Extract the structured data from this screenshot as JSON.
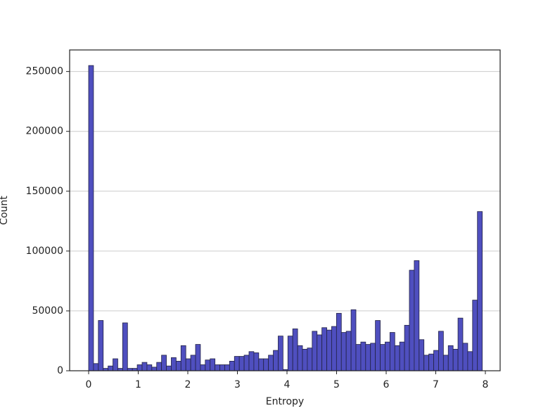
{
  "chart_data": {
    "type": "histogram",
    "xlabel": "Entropy",
    "ylabel": "Count",
    "bins": [
      0,
      0.098,
      0.196,
      0.294,
      0.392,
      0.49,
      0.588,
      0.686,
      0.784,
      0.882,
      0.98,
      1.078,
      1.176,
      1.274,
      1.372,
      1.47,
      1.568,
      1.666,
      1.764,
      1.862,
      1.96,
      2.058,
      2.156,
      2.254,
      2.352,
      2.45,
      2.548,
      2.646,
      2.744,
      2.842,
      2.94,
      3.038,
      3.136,
      3.234,
      3.332,
      3.43,
      3.528,
      3.626,
      3.724,
      3.822,
      3.92,
      4.018,
      4.116,
      4.214,
      4.312,
      4.41,
      4.508,
      4.606,
      4.704,
      4.802,
      4.9,
      4.998,
      5.096,
      5.194,
      5.292,
      5.39,
      5.488,
      5.586,
      5.684,
      5.782,
      5.88,
      5.978,
      6.076,
      6.174,
      6.272,
      6.37,
      6.468,
      6.566,
      6.664,
      6.762,
      6.86,
      6.958,
      7.056,
      7.154,
      7.252,
      7.35,
      7.448,
      7.546,
      7.644,
      7.742,
      7.84,
      7.938
    ],
    "values": [
      255000,
      6000,
      42000,
      2000,
      4000,
      10000,
      2000,
      40000,
      2000,
      2000,
      5000,
      7000,
      5000,
      3000,
      7000,
      13000,
      4000,
      11000,
      8000,
      21000,
      10000,
      13000,
      22000,
      5000,
      9000,
      10000,
      5000,
      5000,
      5000,
      8000,
      12000,
      12000,
      13000,
      16000,
      15000,
      10000,
      10000,
      13000,
      17000,
      29000,
      1000,
      29000,
      35000,
      21000,
      18000,
      19000,
      33000,
      30000,
      36000,
      34000,
      37000,
      48000,
      32000,
      33000,
      51000,
      22000,
      24000,
      22000,
      23000,
      42000,
      22000,
      24000,
      32000,
      21000,
      24000,
      38000,
      84000,
      92000,
      26000,
      13000,
      14000,
      17000,
      33000,
      13000,
      21000,
      18000,
      44000,
      23000,
      16000,
      59000,
      133000
    ],
    "color": "#4f4fbf",
    "edgecolor": "#222244",
    "xlim": [
      -0.383,
      8.298
    ],
    "xticks": [
      0,
      1,
      2,
      3,
      4,
      5,
      6,
      7,
      8
    ],
    "ylim": [
      0,
      268000
    ],
    "yticks": [
      0,
      50000,
      100000,
      150000,
      200000,
      250000
    ],
    "grid": true
  }
}
